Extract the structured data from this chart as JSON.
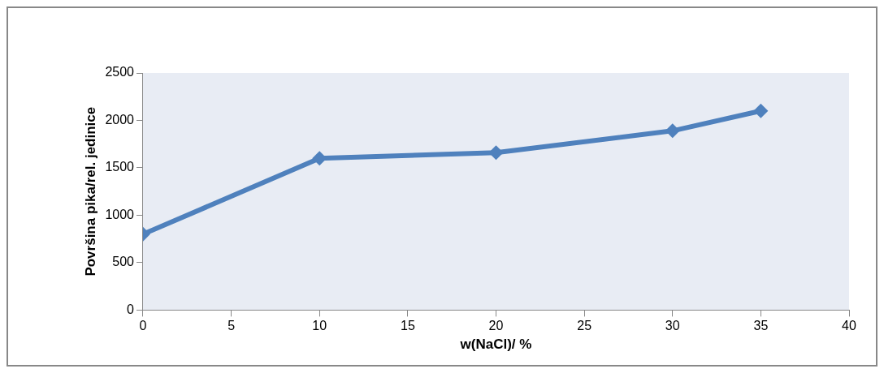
{
  "chart_data": {
    "type": "line",
    "xlabel": "w(NaCl)/ %",
    "ylabel": "Površina pika/rel. jedinice",
    "x": [
      0,
      10,
      20,
      30,
      35
    ],
    "series": [
      {
        "color": "#4f81bd",
        "values": [
          800,
          1600,
          1660,
          1890,
          2100
        ]
      }
    ],
    "xlim": [
      0,
      40
    ],
    "xticks": [
      0,
      5,
      10,
      15,
      20,
      25,
      30,
      35,
      40
    ],
    "ylim": [
      0,
      2500
    ],
    "yticks": [
      0,
      500,
      1000,
      1500,
      2000,
      2500
    ],
    "grid": false,
    "legend": false,
    "marker": "diamond",
    "line_style": "solid"
  }
}
